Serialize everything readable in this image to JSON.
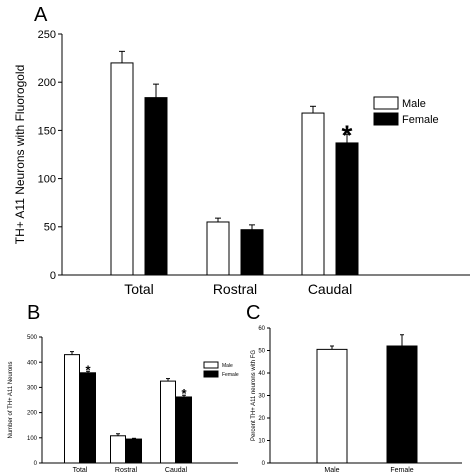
{
  "panels": {
    "A": {
      "label": "A"
    },
    "B": {
      "label": "B"
    },
    "C": {
      "label": "C"
    }
  },
  "chart_data": [
    {
      "id": "A",
      "type": "bar",
      "title": "",
      "ylabel": "TH+ A11 Neurons with Fluorogold",
      "xlabel": "",
      "categories": [
        "Total",
        "Rostral",
        "Caudal"
      ],
      "series": [
        {
          "name": "Male",
          "values": [
            220,
            55,
            168
          ],
          "errors": [
            12,
            4,
            7
          ],
          "fill": "#ffffff"
        },
        {
          "name": "Female",
          "values": [
            184,
            47,
            137
          ],
          "errors": [
            14,
            5,
            9
          ],
          "fill": "#000000"
        }
      ],
      "significance": [
        {
          "category": "Caudal",
          "series": "Female",
          "mark": "*"
        }
      ],
      "ylim": [
        0,
        250
      ],
      "yticks": [
        0,
        50,
        100,
        150,
        200,
        250
      ],
      "legend": "right",
      "grid": false
    },
    {
      "id": "B",
      "type": "bar",
      "title": "",
      "ylabel": "Number of TH+ A11 Neurons",
      "xlabel": "",
      "categories": [
        "Total",
        "Rostral",
        "Caudal"
      ],
      "series": [
        {
          "name": "Male",
          "values": [
            430,
            108,
            325
          ],
          "errors": [
            12,
            8,
            10
          ],
          "fill": "#ffffff"
        },
        {
          "name": "Female",
          "values": [
            358,
            95,
            262
          ],
          "errors": [
            6,
            3,
            7
          ],
          "fill": "#000000"
        }
      ],
      "significance": [
        {
          "category": "Total",
          "series": "Female",
          "mark": "*"
        },
        {
          "category": "Caudal",
          "series": "Female",
          "mark": "*"
        }
      ],
      "ylim": [
        0,
        500
      ],
      "yticks": [
        0,
        100,
        200,
        300,
        400,
        500
      ],
      "legend": "right",
      "grid": false
    },
    {
      "id": "C",
      "type": "bar",
      "title": "",
      "ylabel": "Percent TH+ A11 neurons with FG",
      "xlabel": "",
      "categories": [
        "Male",
        "Female"
      ],
      "series": [
        {
          "name": "",
          "values": [
            50.5,
            52
          ],
          "errors": [
            1.5,
            5
          ],
          "fills": [
            "#ffffff",
            "#000000"
          ]
        }
      ],
      "ylim": [
        0,
        60
      ],
      "yticks": [
        0,
        10,
        20,
        30,
        40,
        50,
        60
      ],
      "grid": false
    }
  ]
}
